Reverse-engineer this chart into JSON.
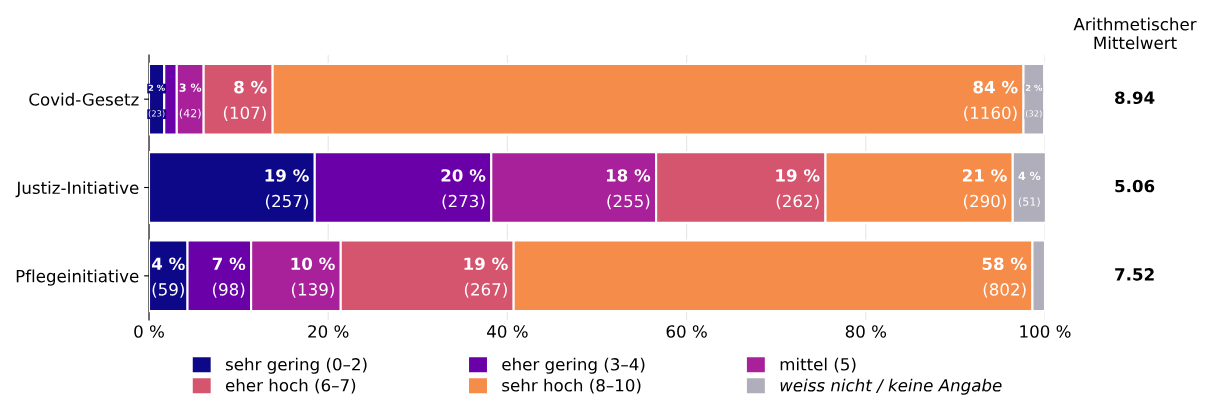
{
  "chart_data": {
    "type": "bar",
    "orientation": "horizontal",
    "stacked": true,
    "categories": [
      "Covid-Gesetz",
      "Justiz-Initiative",
      "Pflegeinitiative"
    ],
    "series": [
      {
        "name": "sehr gering (0–2)",
        "color": "#0d0887",
        "values": [
          1.7,
          18.5,
          4.3
        ],
        "value_labels": [
          "2 %\n(23)",
          "19 %\n(257)",
          "4 %\n(59)"
        ]
      },
      {
        "name": "eher gering (3–4)",
        "color": "#6a00a8",
        "values": [
          1.4,
          19.7,
          7.1
        ],
        "value_labels": [
          null,
          "20 %\n(273)",
          "7 %\n(98)"
        ]
      },
      {
        "name": "mittel (5)",
        "color": "#a8219a",
        "values": [
          3.0,
          18.4,
          10.0
        ],
        "value_labels": [
          "3 %\n(42)",
          "18 %\n(255)",
          "10 %\n(139)"
        ]
      },
      {
        "name": "eher hoch (6–7)",
        "color": "#d5546e",
        "values": [
          7.7,
          18.9,
          19.3
        ],
        "value_labels": [
          "8 %\n(107)",
          "19 %\n(262)",
          "19 %\n(267)"
        ]
      },
      {
        "name": "sehr hoch (8–10)",
        "color": "#f58c4a",
        "values": [
          83.8,
          20.9,
          57.9
        ],
        "value_labels": [
          "84 %\n(1160)",
          "21 %\n(290)",
          "58 %\n(802)"
        ]
      },
      {
        "name": "weiss nicht / keine Angabe",
        "color": "#afaeba",
        "values": [
          2.3,
          3.7,
          1.4
        ],
        "value_labels": [
          "2 %\n(32)",
          "4 %\n(51)",
          null
        ]
      }
    ],
    "xlim": [
      0,
      100
    ],
    "xticks": [
      {
        "value": 0,
        "label": "0 %"
      },
      {
        "value": 20,
        "label": "20 %"
      },
      {
        "value": 40,
        "label": "40 %"
      },
      {
        "value": 60,
        "label": "60 %"
      },
      {
        "value": 80,
        "label": "80 %"
      },
      {
        "value": 100,
        "label": "100 %"
      }
    ],
    "grid": "x",
    "legend": "bottom",
    "annotations": [
      "Arithmetischer\nMittelwert",
      "8.94",
      "5.06",
      "7.52"
    ]
  }
}
